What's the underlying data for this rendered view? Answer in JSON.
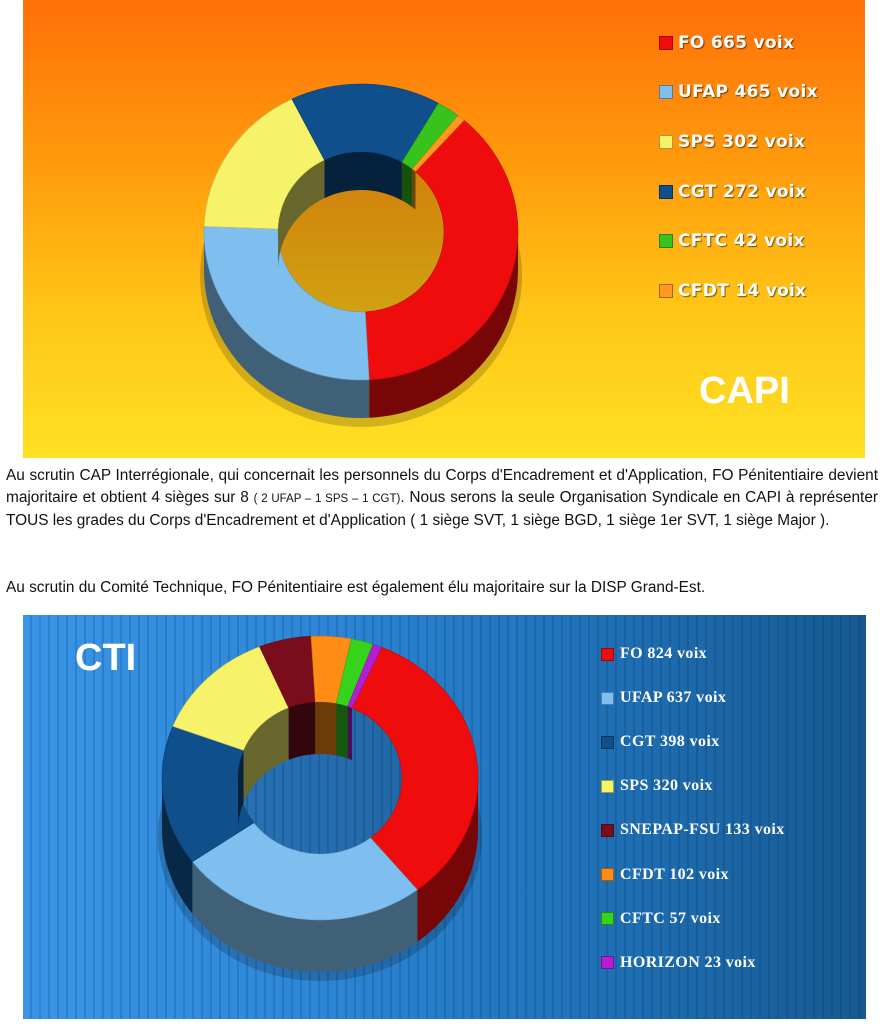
{
  "capi_chart": {
    "title": "CAPI",
    "chart_data": {
      "type": "pie",
      "categories": [
        "FO",
        "UFAP",
        "SPS",
        "CGT",
        "CFTC",
        "CFDT"
      ],
      "values": [
        665,
        465,
        302,
        272,
        42,
        14
      ],
      "colors": [
        "#ee0c0c",
        "#7fbff0",
        "#f6f36a",
        "#0e4f8c",
        "#37c31c",
        "#ff9a1e"
      ],
      "legend": [
        "FO 665 voix",
        "UFAP 465 voix",
        "SPS 302 voix",
        "CGT 272 voix",
        "CFTC 42 voix",
        "CFDT 14 voix"
      ],
      "style": "3d-donut",
      "legend_placement": "right"
    }
  },
  "paragraph_1": {
    "text_start": "Au scrutin CAP Interrégionale, qui concernait les personnels du Corps d'Encadrement et d'Application, FO Pénitentiaire devient majoritaire et obtient 4 sièges sur 8",
    "text_small": "( 2 UFAP – 1 SPS – 1 CGT)",
    "text_end": ". Nous serons la seule Organisation Syndicale en CAPI à représenter TOUS les grades du Corps d'Encadrement et d'Application ( 1 siège SVT, 1 siège BGD, 1 siège 1er SVT, 1 siège Major )."
  },
  "paragraph_2": {
    "text": "Au scrutin du Comité Technique, FO Pénitentiaire est également élu majoritaire sur la DISP Grand-Est."
  },
  "cti_chart": {
    "title": "CTI",
    "chart_data": {
      "type": "pie",
      "categories": [
        "FO",
        "UFAP",
        "CGT",
        "SPS",
        "SNEPAP-FSU",
        "CFDT",
        "CFTC",
        "HORIZON"
      ],
      "values": [
        824,
        637,
        398,
        320,
        133,
        102,
        57,
        23
      ],
      "colors": [
        "#ee0c0c",
        "#7fbff0",
        "#0e4f8c",
        "#f6f36a",
        "#7a0d1c",
        "#ff8c14",
        "#37d31c",
        "#b21ed2"
      ],
      "legend": [
        "FO 824 voix",
        "UFAP 637 voix",
        "CGT 398 voix",
        "SPS 320 voix",
        "SNEPAP-FSU 133 voix",
        "CFDT 102 voix",
        "CFTC 57 voix",
        "HORIZON 23 voix"
      ],
      "style": "3d-donut",
      "legend_placement": "right"
    }
  }
}
